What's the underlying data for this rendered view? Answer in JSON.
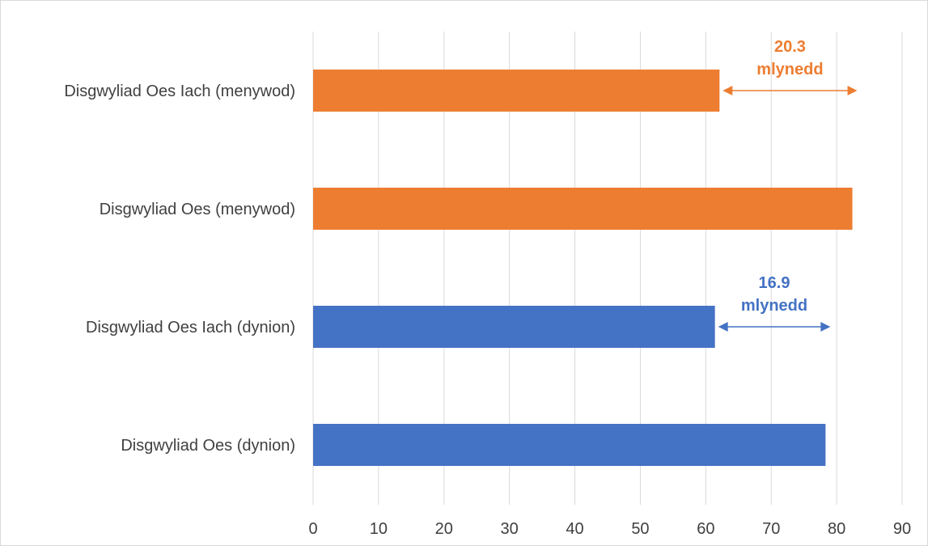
{
  "chart_data": {
    "type": "bar",
    "orientation": "horizontal",
    "title": "",
    "xlabel": "",
    "ylabel": "",
    "xlim": [
      0,
      90
    ],
    "ticks": [
      0,
      10,
      20,
      30,
      40,
      50,
      60,
      70,
      80,
      90
    ],
    "grid": "vertical",
    "legend": "none",
    "categories": [
      "Disgwyliad Oes Iach (menywod)",
      "Disgwyliad Oes (menywod)",
      "Disgwyliad Oes Iach (dynion)",
      "Disgwyliad Oes (dynion)"
    ],
    "values": [
      62.1,
      82.4,
      61.4,
      78.3
    ],
    "bar_colors": [
      "#ED7D31",
      "#ED7D31",
      "#4472C4",
      "#4472C4"
    ],
    "annotations": [
      {
        "value_line1": "20.3",
        "value_line2": "mlynedd",
        "from": 62.1,
        "to": 82.4,
        "row": 0,
        "color": "#ED7D31"
      },
      {
        "value_line1": "16.9",
        "value_line2": "mlynedd",
        "from": 61.4,
        "to": 78.3,
        "row": 2,
        "color": "#4472C4"
      }
    ]
  },
  "colors": {
    "grid": "#d9d9d9",
    "text": "#404040"
  }
}
